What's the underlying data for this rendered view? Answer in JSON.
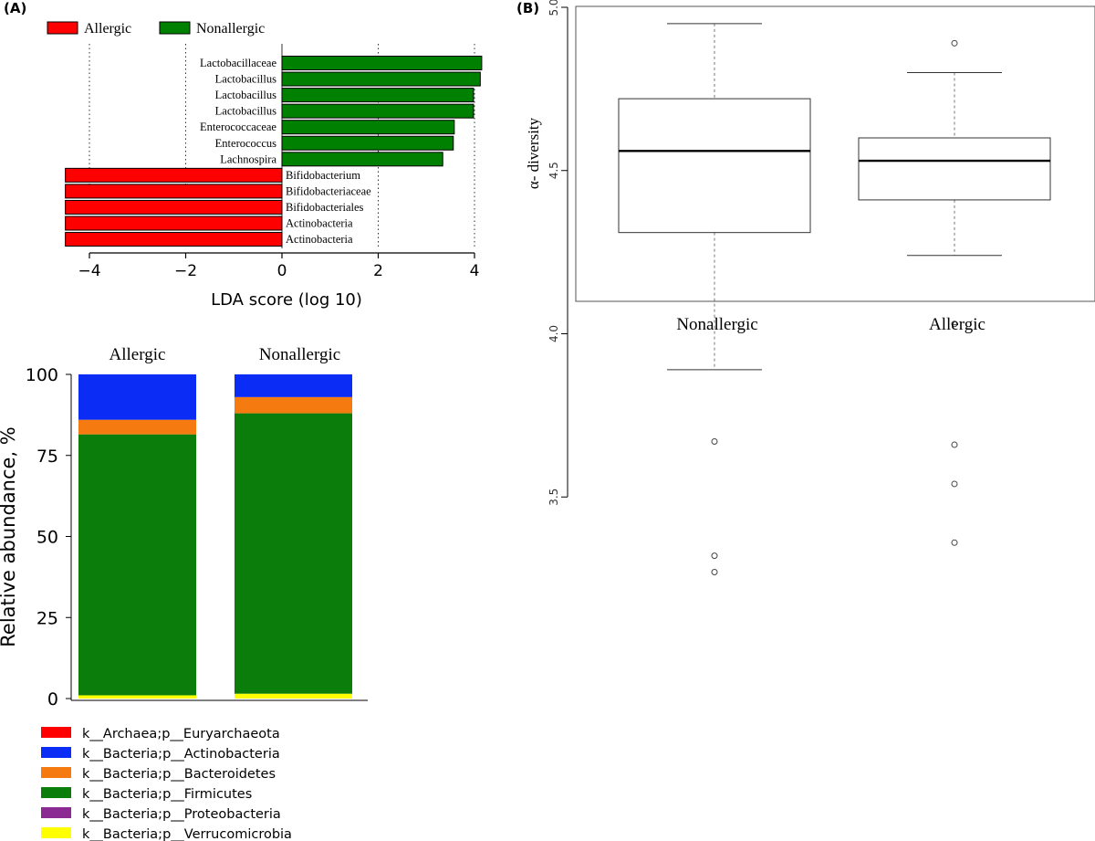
{
  "colors": {
    "allergic_red": "#ff0000",
    "nonallergic_green": "#008000",
    "archaea": "#ff0000",
    "actinobacteria": "#0a2cf5",
    "bacteroidetes": "#f57a0f",
    "firmicutes": "#0a7d0a",
    "proteobacteria": "#8b2a92",
    "verrucomicrobia": "#ffff00"
  },
  "chart_data": [
    {
      "type": "bar",
      "panel_label": "(A)",
      "orientation": "horizontal",
      "xlabel": "LDA score (log 10)",
      "xlim": [
        -4.5,
        4.3
      ],
      "xticks": [
        "−4",
        "−2",
        "0",
        "2",
        "4"
      ],
      "grid": "dotted vertical",
      "legend": [
        "Allergic",
        "Nonallergic"
      ],
      "legend_position": "top-left",
      "categories": [
        "Lactobacillaceae",
        "Lactobacillus",
        "Lactobacillus",
        "Lactobacillus",
        "Enterococcaceae",
        "Enterococcus",
        "Lachnospira",
        "Bifidobacterium",
        "Bifidobacteriaceae",
        "Bifidobacteriales",
        "Actinobacteria",
        "Actinobacteria"
      ],
      "series": [
        {
          "name": "Nonallergic",
          "values": [
            4.15,
            4.12,
            3.98,
            3.98,
            3.58,
            3.56,
            3.34,
            null,
            null,
            null,
            null,
            null
          ]
        },
        {
          "name": "Allergic",
          "values": [
            null,
            null,
            null,
            null,
            null,
            null,
            null,
            -4.5,
            -4.5,
            -4.5,
            -4.5,
            -4.5
          ]
        }
      ]
    },
    {
      "type": "box",
      "panel_label": "(B)",
      "ylabel": "α- diversity",
      "ylim": [
        3.3,
        5.0
      ],
      "yticks": [
        "3.5",
        "4.0",
        "4.5",
        "5.0"
      ],
      "categories": [
        "Nonallergic",
        "Allergic"
      ],
      "boxes": [
        {
          "name": "Nonallergic",
          "whisker_low": 3.89,
          "q1": 4.31,
          "median": 4.56,
          "q3": 4.72,
          "whisker_high": 4.95,
          "outliers": [
            3.67,
            3.32,
            3.27
          ]
        },
        {
          "name": "Allergic",
          "whisker_low": 4.24,
          "q1": 4.41,
          "median": 4.53,
          "q3": 4.6,
          "whisker_high": 4.8,
          "outliers": [
            4.89,
            4.03,
            3.66,
            3.54,
            3.36
          ]
        }
      ]
    },
    {
      "type": "stacked-bar",
      "ylabel": "Relative abundance, %",
      "ylim": [
        0,
        100
      ],
      "yticks": [
        "0",
        "25",
        "50",
        "75",
        "100"
      ],
      "categories": [
        "Allergic",
        "Nonallergic"
      ],
      "series": [
        {
          "name": "k__Archaea;p__Euryarchaeota",
          "key": "archaea",
          "values": [
            0.0,
            0.0
          ]
        },
        {
          "name": "k__Bacteria;p__Actinobacteria",
          "key": "actinobacteria",
          "values": [
            14.0,
            7.0
          ]
        },
        {
          "name": "k__Bacteria;p__Bacteroidetes",
          "key": "bacteroidetes",
          "values": [
            4.5,
            5.0
          ]
        },
        {
          "name": "k__Bacteria;p__Firmicutes",
          "key": "firmicutes",
          "values": [
            80.5,
            86.5
          ]
        },
        {
          "name": "k__Bacteria;p__Proteobacteria",
          "key": "proteobacteria",
          "values": [
            0.0,
            0.0
          ]
        },
        {
          "name": "k__Bacteria;p__Verrucomicrobia",
          "key": "verrucomicrobia",
          "values": [
            1.0,
            1.5
          ]
        }
      ],
      "legend_position": "bottom"
    }
  ]
}
